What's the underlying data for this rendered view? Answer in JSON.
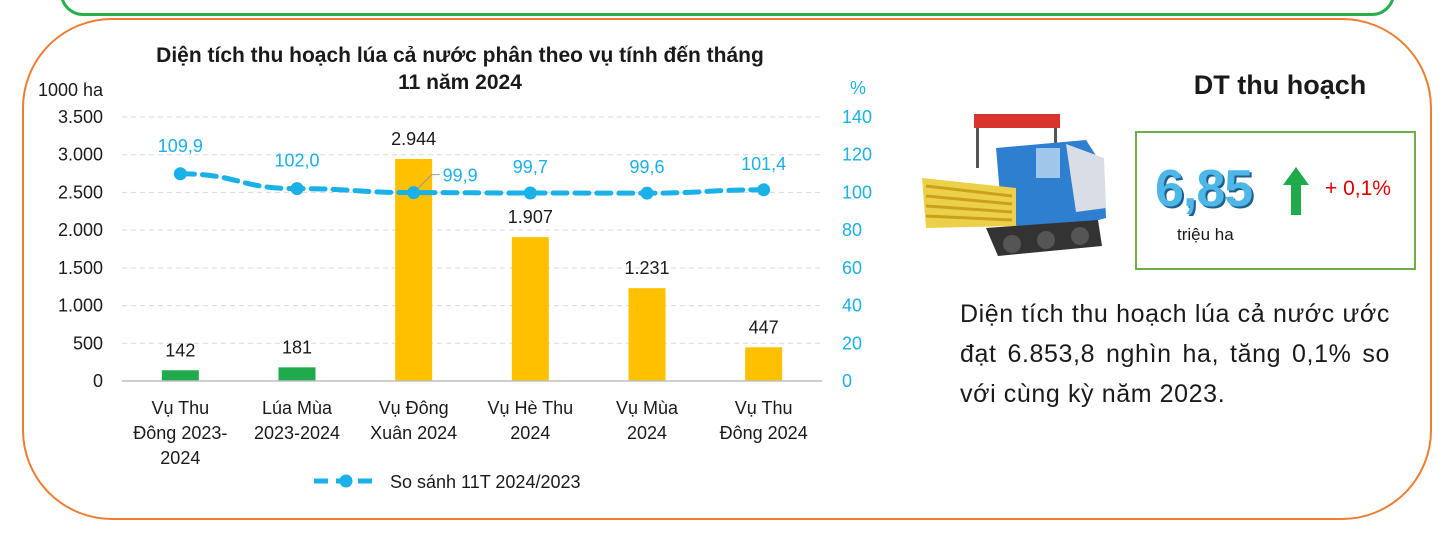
{
  "chart_data": {
    "type": "bar",
    "title": "Diện tích thu hoạch lúa cả nước phân theo vụ tính đến tháng 11 năm 2024",
    "categories": [
      [
        "Vụ Thu",
        "Đông 2023-",
        "2024"
      ],
      [
        "Lúa Mùa",
        "2023-2024"
      ],
      [
        "Vụ Đông",
        "Xuân 2024"
      ],
      [
        "Vụ Hè Thu",
        "2024"
      ],
      [
        "Vụ Mùa",
        "2024"
      ],
      [
        "Vụ Thu",
        "Đông 2024"
      ]
    ],
    "series": [
      {
        "type": "bar",
        "axis": "left",
        "values": [
          142,
          181,
          2944,
          1907,
          1231,
          447
        ],
        "value_labels": [
          "142",
          "181",
          "2.944",
          "1.907",
          "1.231",
          "447"
        ],
        "colors": [
          "#1faa4b",
          "#1faa4b",
          "#ffc000",
          "#ffc000",
          "#ffc000",
          "#ffc000"
        ]
      },
      {
        "type": "line",
        "axis": "right",
        "name": "So sánh 11T 2024/2023",
        "values": [
          109.9,
          102.0,
          99.9,
          99.7,
          99.6,
          101.4
        ],
        "value_labels": [
          "109,9",
          "102,0",
          "99,9",
          "99,7",
          "99,6",
          "101,4"
        ],
        "color": "#1ab0e8",
        "style": "dashed"
      }
    ],
    "y_left": {
      "unit": "1000 ha",
      "ylim": [
        0,
        3500
      ],
      "ticks": [
        0,
        500,
        1000,
        1500,
        2000,
        2500,
        3000,
        3500
      ],
      "tick_labels": [
        "0",
        "500",
        "1.000",
        "1.500",
        "2.000",
        "2.500",
        "3.000",
        "3.500"
      ]
    },
    "y_right": {
      "unit": "%",
      "ylim": [
        0,
        140
      ],
      "ticks": [
        0,
        20,
        40,
        60,
        80,
        100,
        120,
        140
      ],
      "tick_labels": [
        "0",
        "20",
        "40",
        "60",
        "80",
        "100",
        "120",
        "140"
      ],
      "color": "#1ab0e8"
    },
    "grid": true,
    "legend_position": "bottom"
  },
  "kpi": {
    "heading": "DT thu hoạch",
    "value": "6,85",
    "unit": "triệu ha",
    "change": "+ 0,1%",
    "trend_icon": "up-arrow-icon",
    "trend_color": "#1faa4b"
  },
  "description": "Diện tích thu hoạch lúa cả nước ước đạt 6.853,8 nghìn ha, tăng 0,1% so với cùng kỳ năm 2023.",
  "illustration": "rice-combine-harvester-icon",
  "colors": {
    "panel_border": "#ed7d31",
    "top_panel_border": "#22b14c",
    "kpi_border": "#70ad47",
    "kpi_value": "#4db8e8",
    "change_text": "#e00000"
  }
}
